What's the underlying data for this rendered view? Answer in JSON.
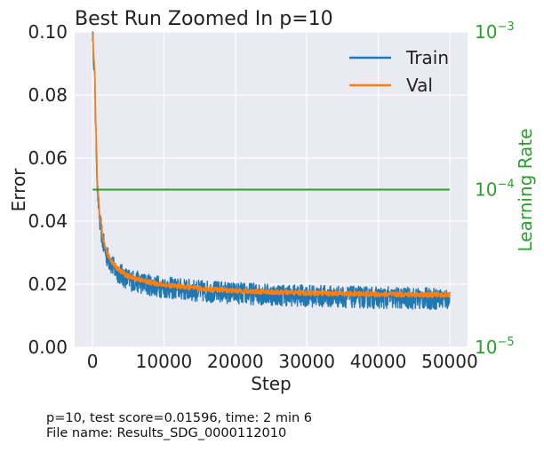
{
  "chart_data": {
    "type": "line",
    "title": "Best Run Zoomed In p=10",
    "xlabel": "Step",
    "ylabel": "Error",
    "y2label": "Learning Rate",
    "xlim": [
      -2500,
      52500
    ],
    "ylim": [
      0,
      0.1
    ],
    "y2lim_exponent": [
      -5,
      -3
    ],
    "y2_scale": "log",
    "grid": true,
    "legend_position": "top-right",
    "x_ticks": [
      0,
      10000,
      20000,
      30000,
      40000,
      50000
    ],
    "y_ticks": [
      0.0,
      0.02,
      0.04,
      0.06,
      0.08,
      0.1
    ],
    "y2_ticks": [
      -5,
      -4,
      -3
    ],
    "x_tick_labels": [
      "0",
      "10000",
      "20000",
      "30000",
      "40000",
      "50000"
    ],
    "y_tick_labels": [
      "0.00",
      "0.02",
      "0.04",
      "0.06",
      "0.08",
      "0.10"
    ],
    "series": [
      {
        "name": "Train",
        "color": "#1f77b4",
        "x": [
          0,
          300,
          500,
          700,
          1000,
          1500,
          2000,
          3000,
          4000,
          5000,
          7500,
          10000,
          15000,
          20000,
          25000,
          30000,
          35000,
          40000,
          45000,
          50000
        ],
        "y": [
          0.1,
          0.085,
          0.065,
          0.05,
          0.04,
          0.033,
          0.029,
          0.025,
          0.023,
          0.0215,
          0.02,
          0.019,
          0.0178,
          0.0172,
          0.0167,
          0.0163,
          0.016,
          0.0157,
          0.0155,
          0.0153
        ],
        "noise_amplitude": 0.0035
      },
      {
        "name": "Val",
        "color": "#ff7f0e",
        "x": [
          0,
          300,
          500,
          700,
          1000,
          1500,
          2000,
          3000,
          4000,
          5000,
          7500,
          10000,
          15000,
          20000,
          25000,
          30000,
          35000,
          40000,
          45000,
          50000
        ],
        "y": [
          0.1,
          0.088,
          0.068,
          0.052,
          0.042,
          0.034,
          0.03,
          0.026,
          0.024,
          0.0225,
          0.0208,
          0.0198,
          0.0186,
          0.0179,
          0.0175,
          0.0172,
          0.017,
          0.0168,
          0.0167,
          0.0166
        ],
        "noise_amplitude": 0.0008
      },
      {
        "name": "Learning Rate",
        "axis": "y2",
        "color": "#2ca02c",
        "x": [
          0,
          50000
        ],
        "log10_y": [
          -4,
          -4
        ]
      }
    ]
  },
  "footer": {
    "line1": "p=10, test score=0.01596, time: 2 min 6",
    "line2": "File name: Results_SDG_0000112010"
  }
}
